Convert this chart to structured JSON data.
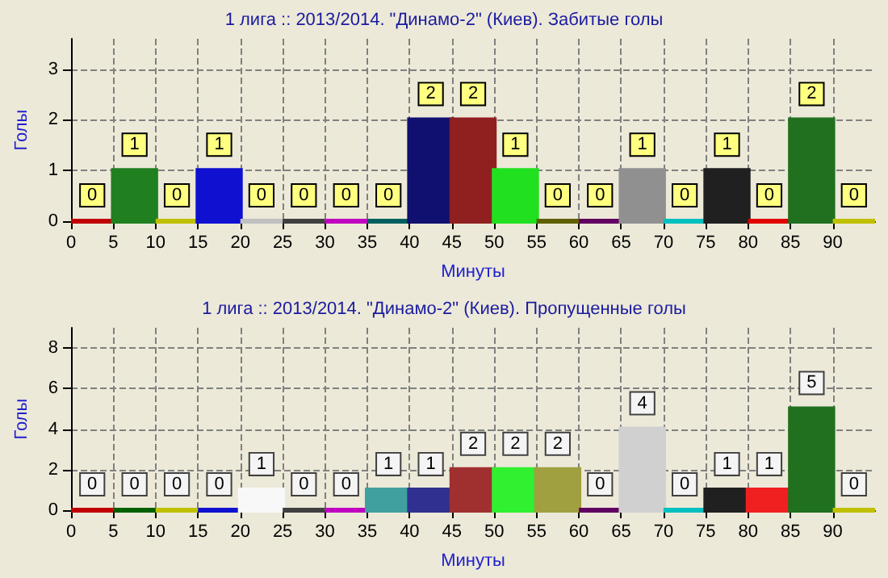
{
  "chart_data": [
    {
      "type": "histogram",
      "title": "1 лига :: 2013/2014. \"Динамо-2\" (Киев). Забитые голы",
      "xlabel": "Минуты",
      "ylabel": "Голы",
      "bins": [
        0,
        5,
        10,
        15,
        20,
        25,
        30,
        35,
        40,
        45,
        50,
        55,
        60,
        65,
        70,
        75,
        80,
        85,
        90,
        95
      ],
      "values": [
        0,
        1,
        0,
        1,
        0,
        0,
        0,
        0,
        2,
        2,
        1,
        0,
        0,
        1,
        0,
        1,
        0,
        2,
        0
      ],
      "colors": [
        "#c00000",
        "#208020",
        "#c0c000",
        "#1010d0",
        "#c0c0c0",
        "#404040",
        "#c000c0",
        "#006060",
        "#101070",
        "#902020",
        "#20e020",
        "#606000",
        "#600060",
        "#909090",
        "#00c0c0",
        "#202020",
        "#e00000",
        "#207020",
        "#c0c000"
      ],
      "xlim": [
        0,
        95
      ],
      "xticks": [
        0,
        5,
        10,
        15,
        20,
        25,
        30,
        35,
        40,
        45,
        50,
        55,
        60,
        65,
        70,
        75,
        80,
        85,
        90
      ],
      "ylim": [
        0,
        3.6
      ],
      "yticks": [
        0,
        1,
        2,
        3
      ],
      "grid": true,
      "data_labels": true
    },
    {
      "type": "histogram",
      "title": "1 лига :: 2013/2014. \"Динамо-2\" (Киев). Пропущенные голы",
      "xlabel": "Минуты",
      "ylabel": "Голы",
      "bins": [
        0,
        5,
        10,
        15,
        20,
        25,
        30,
        35,
        40,
        45,
        50,
        55,
        60,
        65,
        70,
        75,
        80,
        85,
        90,
        95
      ],
      "values": [
        0,
        0,
        0,
        0,
        1,
        0,
        0,
        1,
        1,
        2,
        2,
        2,
        0,
        4,
        0,
        1,
        1,
        5,
        0
      ],
      "colors": [
        "#c00000",
        "#006000",
        "#c0c000",
        "#1010d0",
        "#f8f8f8",
        "#404040",
        "#c000c0",
        "#40a0a0",
        "#303090",
        "#a03030",
        "#30f030",
        "#a0a040",
        "#600060",
        "#d0d0d0",
        "#00c0c0",
        "#202020",
        "#f02020",
        "#207020",
        "#c0c000"
      ],
      "xlim": [
        0,
        95
      ],
      "xticks": [
        0,
        5,
        10,
        15,
        20,
        25,
        30,
        35,
        40,
        45,
        50,
        55,
        60,
        65,
        70,
        75,
        80,
        85,
        90
      ],
      "ylim": [
        0,
        9
      ],
      "yticks": [
        0,
        2,
        4,
        6,
        8
      ],
      "grid": true,
      "data_labels": true
    }
  ]
}
